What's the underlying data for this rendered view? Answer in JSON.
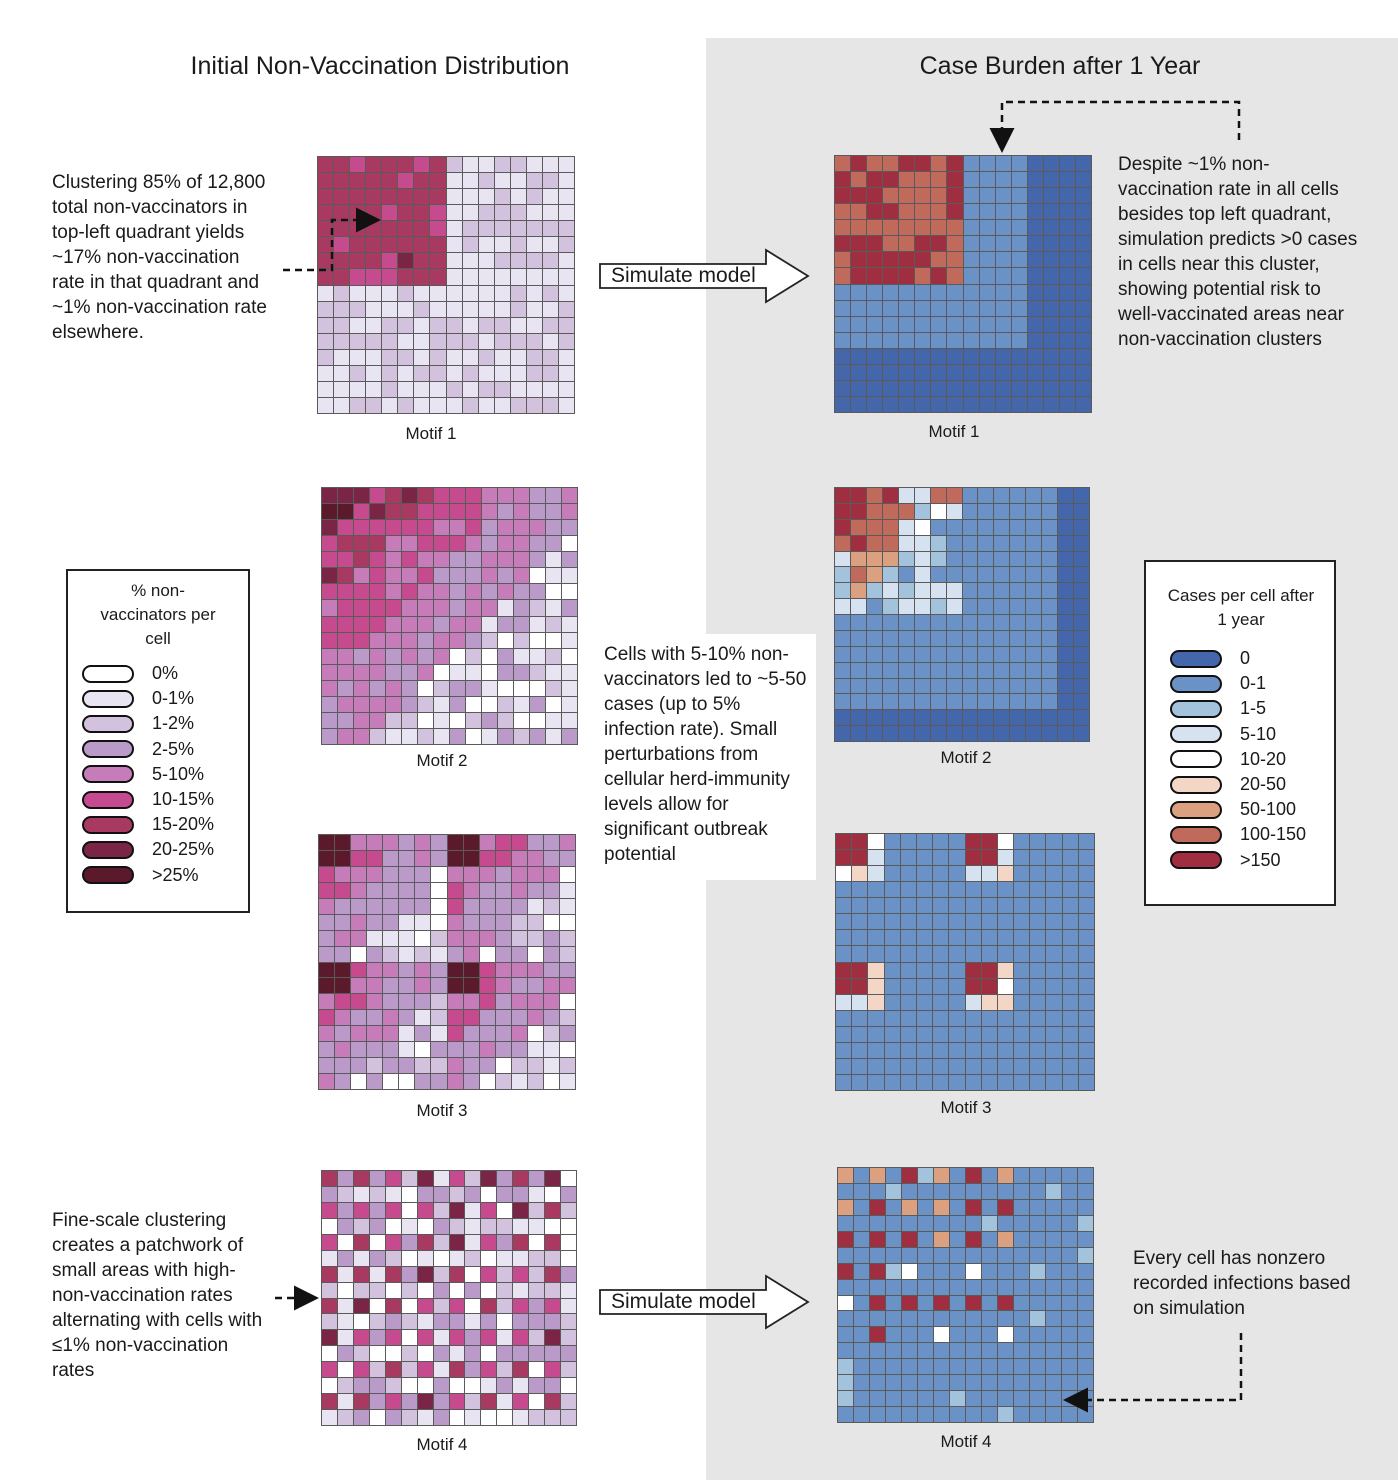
{
  "titles": {
    "left": "Initial Non-Vaccination Distribution",
    "right": "Case Burden after 1 Year"
  },
  "notes": {
    "motif1_left": "Clustering 85% of 12,800 total non-vaccinators in top-left quadrant yields ~17% non-vaccination rate in that quadrant and ~1% non-vaccination rate elsewhere.",
    "motif1_right": "Despite ~1% non-vaccination rate in all cells besides top left quadrant, simulation predicts >0 cases in cells near this cluster, showing potential risk to well-vaccinated areas near non-vaccination clusters",
    "middle": "Cells with 5-10% non-vaccinators led to ~5-50 cases (up to 5% infection rate). Small perturbations from cellular herd-immunity levels allow for significant outbreak potential",
    "motif4_left": "Fine-scale clustering creates a patchwork of small areas with high-non-vaccination rates alternating with cells with ≤1% non-vaccination rates",
    "motif4_right": "Every cell has nonzero recorded infections based on simulation"
  },
  "simulate_label": "Simulate model",
  "motif_labels": [
    "Motif 1",
    "Motif 2",
    "Motif 3",
    "Motif 4"
  ],
  "legend_left": {
    "title": "% non-vaccinators per cell",
    "items": [
      {
        "label": "0%",
        "color": "#ffffff"
      },
      {
        "label": "0-1%",
        "color": "#e9e4f1"
      },
      {
        "label": "1-2%",
        "color": "#d3c2de"
      },
      {
        "label": "2-5%",
        "color": "#b99ac9"
      },
      {
        "label": "5-10%",
        "color": "#c57cb9"
      },
      {
        "label": "10-15%",
        "color": "#c54a8e"
      },
      {
        "label": "15-20%",
        "color": "#a83a62"
      },
      {
        "label": "20-25%",
        "color": "#7a2545"
      },
      {
        "label": ">25%",
        "color": "#5a1a2c"
      }
    ]
  },
  "legend_right": {
    "title": "Cases per cell after 1 year",
    "items": [
      {
        "label": "0",
        "color": "#4466aa"
      },
      {
        "label": "0-1",
        "color": "#6a92c6"
      },
      {
        "label": "1-5",
        "color": "#a3c2dc"
      },
      {
        "label": "5-10",
        "color": "#d6e2ef"
      },
      {
        "label": "10-20",
        "color": "#ffffff"
      },
      {
        "label": "20-50",
        "color": "#f3d6c6"
      },
      {
        "label": "50-100",
        "color": "#dba080"
      },
      {
        "label": "100-150",
        "color": "#c06a5c"
      },
      {
        "label": ">150",
        "color": "#9f2f40"
      }
    ]
  }
}
